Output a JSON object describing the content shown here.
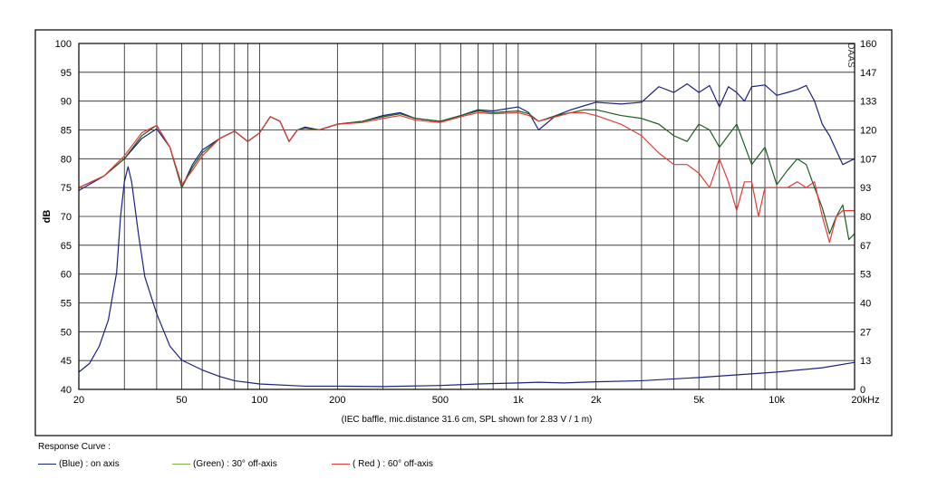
{
  "chart_data": {
    "type": "line",
    "y_left_label": "dB",
    "y_left_ticks": [
      "100",
      "95",
      "90",
      "85",
      "80",
      "75",
      "70",
      "65",
      "60",
      "55",
      "50",
      "45",
      "40"
    ],
    "y_right_ticks": [
      "160",
      "147",
      "133",
      "120",
      "107",
      "93",
      "80",
      "67",
      "53",
      "40",
      "27",
      "13",
      "0"
    ],
    "ylim_left": [
      40,
      100
    ],
    "ylim_right": [
      0,
      160
    ],
    "x_scale": "log",
    "xlim": [
      20,
      20000
    ],
    "x_tick_labels": [
      {
        "value": 20,
        "label": "20"
      },
      {
        "value": 50,
        "label": "50"
      },
      {
        "value": 100,
        "label": "100"
      },
      {
        "value": 200,
        "label": "200"
      },
      {
        "value": 500,
        "label": "500"
      },
      {
        "value": 1000,
        "label": "1k"
      },
      {
        "value": 2000,
        "label": "2k"
      },
      {
        "value": 5000,
        "label": "5k"
      },
      {
        "value": 10000,
        "label": "10k"
      },
      {
        "value": 20000,
        "label": "20kHz"
      }
    ],
    "caption": "(IEC baffle, mic.distance 31.6 cm, SPL shown for 2.83 V / 1 m)",
    "watermark": "DAAS",
    "series": [
      {
        "name": "(Blue) : on axis",
        "color": "#1a237e",
        "points": [
          [
            20,
            74.5
          ],
          [
            25,
            77
          ],
          [
            30,
            80
          ],
          [
            35,
            83.5
          ],
          [
            40,
            85.2
          ],
          [
            45,
            82
          ],
          [
            50,
            75
          ],
          [
            55,
            79
          ],
          [
            60,
            81.5
          ],
          [
            70,
            83.5
          ],
          [
            80,
            84.8
          ],
          [
            90,
            83
          ],
          [
            100,
            84.5
          ],
          [
            110,
            87.3
          ],
          [
            120,
            86.5
          ],
          [
            130,
            83
          ],
          [
            140,
            85
          ],
          [
            150,
            85.5
          ],
          [
            170,
            85
          ],
          [
            200,
            86
          ],
          [
            250,
            86.5
          ],
          [
            300,
            87.5
          ],
          [
            350,
            88
          ],
          [
            400,
            87
          ],
          [
            500,
            86.5
          ],
          [
            600,
            87.5
          ],
          [
            700,
            88.5
          ],
          [
            800,
            88.3
          ],
          [
            1000,
            89
          ],
          [
            1100,
            88
          ],
          [
            1200,
            85
          ],
          [
            1400,
            87.5
          ],
          [
            1600,
            88.5
          ],
          [
            1800,
            89.2
          ],
          [
            2000,
            89.8
          ],
          [
            2500,
            89.5
          ],
          [
            3000,
            89.8
          ],
          [
            3500,
            92.5
          ],
          [
            4000,
            91.5
          ],
          [
            4500,
            93
          ],
          [
            5000,
            91.5
          ],
          [
            5500,
            92.7
          ],
          [
            6000,
            89
          ],
          [
            6500,
            92.5
          ],
          [
            7000,
            91.5
          ],
          [
            7500,
            90
          ],
          [
            8000,
            92.5
          ],
          [
            9000,
            92.8
          ],
          [
            10000,
            91
          ],
          [
            11000,
            91.5
          ],
          [
            12000,
            92
          ],
          [
            13000,
            92.7
          ],
          [
            14000,
            90
          ],
          [
            15000,
            86
          ],
          [
            16000,
            84
          ],
          [
            18000,
            79
          ],
          [
            20000,
            80
          ]
        ]
      },
      {
        "name": "(Green) : 30° off-axis",
        "color": "#1b5e20",
        "points": [
          [
            20,
            75
          ],
          [
            25,
            77
          ],
          [
            30,
            80
          ],
          [
            35,
            84
          ],
          [
            40,
            85.8
          ],
          [
            45,
            82
          ],
          [
            50,
            75
          ],
          [
            55,
            78.5
          ],
          [
            60,
            81
          ],
          [
            70,
            83.5
          ],
          [
            80,
            84.8
          ],
          [
            90,
            83
          ],
          [
            100,
            84.5
          ],
          [
            110,
            87.3
          ],
          [
            120,
            86.5
          ],
          [
            130,
            83
          ],
          [
            140,
            85
          ],
          [
            150,
            85.3
          ],
          [
            170,
            85
          ],
          [
            200,
            86
          ],
          [
            250,
            86.5
          ],
          [
            300,
            87.3
          ],
          [
            350,
            87.8
          ],
          [
            400,
            87
          ],
          [
            500,
            86.5
          ],
          [
            600,
            87.5
          ],
          [
            700,
            88.3
          ],
          [
            800,
            88
          ],
          [
            1000,
            88.3
          ],
          [
            1100,
            87.8
          ],
          [
            1200,
            86.5
          ],
          [
            1400,
            87.5
          ],
          [
            1600,
            88
          ],
          [
            1800,
            88.5
          ],
          [
            2000,
            88.5
          ],
          [
            2500,
            87.5
          ],
          [
            3000,
            87
          ],
          [
            3500,
            86
          ],
          [
            4000,
            84
          ],
          [
            4500,
            83
          ],
          [
            5000,
            86
          ],
          [
            5500,
            85
          ],
          [
            6000,
            82
          ],
          [
            7000,
            86
          ],
          [
            8000,
            79
          ],
          [
            9000,
            82
          ],
          [
            10000,
            75.5
          ],
          [
            11000,
            78
          ],
          [
            12000,
            80
          ],
          [
            13000,
            79
          ],
          [
            14000,
            75
          ],
          [
            15000,
            71.5
          ],
          [
            16000,
            67
          ],
          [
            17000,
            70
          ],
          [
            18000,
            72
          ],
          [
            19000,
            66
          ],
          [
            20000,
            67
          ]
        ]
      },
      {
        "name": "( Red ) : 60° off-axis",
        "color": "#e53935",
        "points": [
          [
            20,
            75
          ],
          [
            25,
            77
          ],
          [
            30,
            80.5
          ],
          [
            35,
            84.5
          ],
          [
            40,
            85.8
          ],
          [
            45,
            82
          ],
          [
            50,
            75.5
          ],
          [
            55,
            78
          ],
          [
            60,
            80.5
          ],
          [
            70,
            83.5
          ],
          [
            80,
            84.8
          ],
          [
            90,
            83
          ],
          [
            100,
            84.5
          ],
          [
            110,
            87.3
          ],
          [
            120,
            86.5
          ],
          [
            130,
            83
          ],
          [
            140,
            85
          ],
          [
            150,
            85
          ],
          [
            170,
            85
          ],
          [
            200,
            86
          ],
          [
            250,
            86.3
          ],
          [
            300,
            87
          ],
          [
            350,
            87.5
          ],
          [
            400,
            86.7
          ],
          [
            500,
            86.3
          ],
          [
            600,
            87.3
          ],
          [
            700,
            88
          ],
          [
            800,
            87.8
          ],
          [
            1000,
            88
          ],
          [
            1100,
            87.5
          ],
          [
            1200,
            86.5
          ],
          [
            1400,
            87.3
          ],
          [
            1600,
            88
          ],
          [
            1800,
            88
          ],
          [
            2000,
            87.5
          ],
          [
            2500,
            86
          ],
          [
            3000,
            84
          ],
          [
            3500,
            81
          ],
          [
            4000,
            79
          ],
          [
            4500,
            79
          ],
          [
            5000,
            77.5
          ],
          [
            5500,
            75
          ],
          [
            6000,
            80
          ],
          [
            6500,
            76
          ],
          [
            7000,
            71
          ],
          [
            7500,
            76
          ],
          [
            8000,
            76
          ],
          [
            8500,
            70
          ],
          [
            9000,
            75
          ],
          [
            10000,
            75
          ],
          [
            11000,
            75
          ],
          [
            12000,
            76
          ],
          [
            13000,
            75
          ],
          [
            14000,
            76
          ],
          [
            15000,
            70
          ],
          [
            16000,
            65.5
          ],
          [
            17000,
            70
          ],
          [
            18000,
            71
          ],
          [
            20000,
            71
          ]
        ]
      },
      {
        "name": "impedance",
        "axis": "right",
        "color": "#1a237e",
        "points": [
          [
            20,
            8
          ],
          [
            22,
            12
          ],
          [
            24,
            20
          ],
          [
            26,
            32
          ],
          [
            28,
            54
          ],
          [
            29,
            80
          ],
          [
            30,
            96
          ],
          [
            31,
            103
          ],
          [
            32,
            96
          ],
          [
            34,
            72
          ],
          [
            36,
            52
          ],
          [
            40,
            35
          ],
          [
            45,
            20
          ],
          [
            50,
            13.5
          ],
          [
            60,
            9
          ],
          [
            70,
            6
          ],
          [
            80,
            4
          ],
          [
            100,
            2.5
          ],
          [
            150,
            1.5
          ],
          [
            200,
            1.5
          ],
          [
            300,
            1.3
          ],
          [
            500,
            1.8
          ],
          [
            700,
            2.5
          ],
          [
            1000,
            3
          ],
          [
            1200,
            3.3
          ],
          [
            1500,
            3
          ],
          [
            2000,
            3.5
          ],
          [
            3000,
            4
          ],
          [
            5000,
            5.5
          ],
          [
            10000,
            8
          ],
          [
            15000,
            10
          ],
          [
            20000,
            12.5
          ]
        ]
      }
    ]
  },
  "legend": {
    "title": "Response Curve :",
    "items": [
      {
        "label": "(Blue)  : on axis",
        "color": "#1a237e"
      },
      {
        "label": "(Green) : 30° off-axis",
        "color": "#7cb342"
      },
      {
        "label": "( Red ) : 60° off-axis",
        "color": "#e53935"
      }
    ]
  }
}
